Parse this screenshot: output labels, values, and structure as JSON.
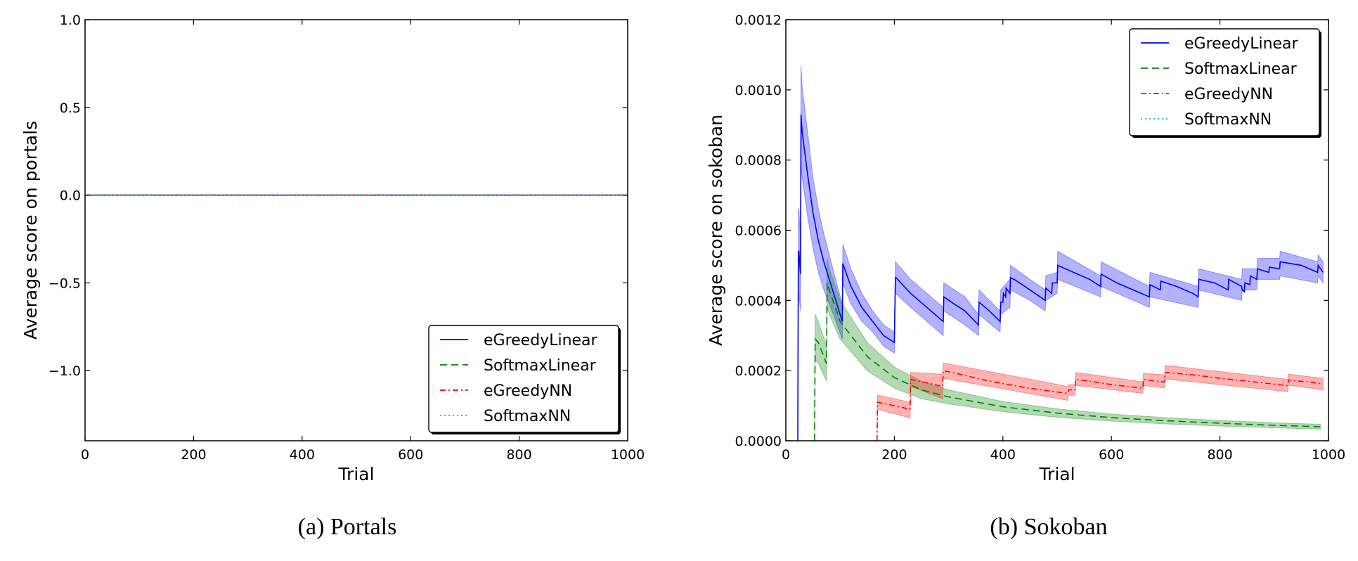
{
  "chart_data": [
    {
      "type": "line",
      "caption": "(a) Portals",
      "xlabel": "Trial",
      "ylabel": "Average score on portals",
      "xlim": [
        0,
        1000
      ],
      "ylim": [
        -1.4,
        1.0
      ],
      "xticks": [
        0,
        200,
        400,
        600,
        800,
        1000
      ],
      "xtick_labels": [
        "0",
        "200",
        "400",
        "600",
        "800",
        "1000"
      ],
      "yticks": [
        -1.0,
        -0.5,
        0.0,
        0.5,
        1.0
      ],
      "ytick_labels": [
        "−1.0",
        "−0.5",
        "0.0",
        "0.5",
        "1.0"
      ],
      "grid": false,
      "legend_position": "lower-right",
      "series": [
        {
          "name": "eGreedyLinear",
          "color": "#0000ff",
          "style": "solid",
          "x": [
            0,
            1000
          ],
          "y": [
            0,
            0
          ]
        },
        {
          "name": "SoftmaxLinear",
          "color": "#008000",
          "style": "dashed",
          "x": [
            0,
            1000
          ],
          "y": [
            0,
            0
          ]
        },
        {
          "name": "eGreedyNN",
          "color": "#ff0000",
          "style": "dashdot",
          "x": [
            0,
            1000
          ],
          "y": [
            0,
            0
          ]
        },
        {
          "name": "SoftmaxNN",
          "color": "#00bfbf",
          "style": "dotted",
          "x": [
            0,
            1000
          ],
          "y": [
            0,
            0
          ]
        }
      ]
    },
    {
      "type": "line",
      "caption": "(b) Sokoban",
      "xlabel": "Trial",
      "ylabel": "Average score on sokoban",
      "xlim": [
        0,
        1000
      ],
      "ylim": [
        0,
        0.0012
      ],
      "xticks": [
        0,
        200,
        400,
        600,
        800,
        1000
      ],
      "xtick_labels": [
        "0",
        "200",
        "400",
        "600",
        "800",
        "1000"
      ],
      "yticks": [
        0,
        0.0002,
        0.0004,
        0.0006,
        0.0008,
        0.001,
        0.0012
      ],
      "ytick_labels": [
        "0.0000",
        "0.0002",
        "0.0004",
        "0.0006",
        "0.0008",
        "0.0010",
        "0.0012"
      ],
      "grid": false,
      "legend_position": "upper-right",
      "series": [
        {
          "name": "eGreedyLinear",
          "color": "#0000ff",
          "style": "solid",
          "x": [
            22,
            23,
            24,
            27,
            28,
            30,
            40,
            50,
            60,
            70,
            80,
            90,
            104,
            105,
            120,
            140,
            160,
            180,
            200,
            202,
            203,
            230,
            260,
            290,
            291,
            310,
            330,
            355,
            356,
            375,
            395,
            396,
            400,
            401,
            405,
            406,
            413,
            414,
            420,
            421,
            450,
            478,
            479,
            490,
            491,
            500,
            501,
            530,
            560,
            580,
            581,
            610,
            640,
            670,
            671,
            690,
            691,
            720,
            750,
            760,
            761,
            790,
            815,
            816,
            840,
            841,
            845,
            846,
            855,
            856,
            868,
            869,
            890,
            891,
            910,
            911,
            950,
            980,
            981,
            990
          ],
          "y": [
            0,
            0.00054,
            0.00054,
            0.000475,
            0.00093,
            0.00088,
            0.00076,
            0.00065,
            0.00057,
            0.00051,
            0.00046,
            0.00041,
            0.00034,
            0.000505,
            0.00044,
            0.00038,
            0.00034,
            0.0003,
            0.00028,
            0.000465,
            0.000465,
            0.00042,
            0.00038,
            0.00034,
            0.00041,
            0.00039,
            0.00037,
            0.00033,
            0.000395,
            0.00037,
            0.00034,
            0.000395,
            0.000395,
            0.00042,
            0.00041,
            0.000435,
            0.00042,
            0.000465,
            0.00046,
            0.00046,
            0.00043,
            0.0004,
            0.000435,
            0.00042,
            0.00045,
            0.00045,
            0.0005,
            0.00048,
            0.00046,
            0.00044,
            0.000475,
            0.00045,
            0.00043,
            0.00041,
            0.000445,
            0.00043,
            0.000455,
            0.00044,
            0.00042,
            0.00041,
            0.00046,
            0.00045,
            0.00043,
            0.00046,
            0.00044,
            0.00043,
            0.000425,
            0.00045,
            0.000445,
            0.00047,
            0.00046,
            0.00049,
            0.00048,
            0.000495,
            0.00049,
            0.00051,
            0.0005,
            0.00048,
            0.0005,
            0.00048
          ]
        },
        {
          "name": "SoftmaxLinear",
          "color": "#008000",
          "style": "dashed",
          "x": [
            53,
            54,
            60,
            75,
            76,
            80,
            100,
            150,
            200,
            250,
            300,
            400,
            500,
            600,
            700,
            800,
            900,
            985
          ],
          "y": [
            0,
            0.00029,
            0.00028,
            0.00022,
            0.00045,
            0.00043,
            0.00034,
            0.00024,
            0.00018,
            0.000145,
            0.000125,
            9.7e-05,
            7.9e-05,
            6.6e-05,
            5.7e-05,
            5e-05,
            4.4e-05,
            4e-05
          ]
        },
        {
          "name": "eGreedyNN",
          "color": "#ff0000",
          "style": "dashdot",
          "x": [
            168,
            169,
            200,
            229,
            230,
            260,
            289,
            290,
            320,
            360,
            400,
            440,
            480,
            520,
            521,
            533,
            534,
            560,
            600,
            658,
            659,
            690,
            698,
            699,
            750,
            800,
            850,
            925,
            926,
            960,
            990
          ],
          "y": [
            0,
            0.00011,
            0.0001,
            9e-05,
            0.000175,
            0.000165,
            0.000155,
            0.0002,
            0.00019,
            0.000175,
            0.000163,
            0.000152,
            0.000143,
            0.000135,
            0.000145,
            0.000145,
            0.000175,
            0.00017,
            0.00016,
            0.00015,
            0.000175,
            0.000168,
            0.000168,
            0.000195,
            0.000188,
            0.000178,
            0.00017,
            0.000157,
            0.000173,
            0.000168,
            0.000162
          ]
        },
        {
          "name": "SoftmaxNN",
          "color": "#00bfbf",
          "style": "dotted",
          "x": [],
          "y": []
        }
      ],
      "bands": [
        {
          "series": "eGreedyLinear",
          "color": "#0000ff",
          "x": [
            22,
            23,
            24,
            27,
            28,
            30,
            40,
            50,
            60,
            70,
            80,
            90,
            104,
            105,
            120,
            140,
            160,
            180,
            200,
            202,
            230,
            260,
            290,
            291,
            330,
            355,
            356,
            395,
            396,
            413,
            414,
            450,
            478,
            479,
            500,
            501,
            580,
            581,
            670,
            671,
            760,
            761,
            840,
            841,
            868,
            869,
            910,
            911,
            980,
            981,
            990
          ],
          "lower": [
            0,
            0.00042,
            0.00042,
            0.00037,
            0.00079,
            0.00075,
            0.00064,
            0.00055,
            0.00048,
            0.00043,
            0.00039,
            0.00035,
            0.00029,
            0.00045,
            0.00039,
            0.00034,
            0.00031,
            0.00027,
            0.00025,
            0.00042,
            0.00038,
            0.00034,
            0.0003,
            0.00037,
            0.00033,
            0.0003,
            0.00036,
            0.00031,
            0.00036,
            0.00038,
            0.00043,
            0.0004,
            0.00037,
            0.0004,
            0.00042,
            0.00046,
            0.00041,
            0.00044,
            0.00038,
            0.00041,
            0.00038,
            0.00043,
            0.0004,
            0.00043,
            0.00043,
            0.00046,
            0.00046,
            0.00047,
            0.00045,
            0.00047,
            0.00045
          ],
          "upper": [
            0,
            0.00066,
            0.00066,
            0.00058,
            0.00107,
            0.00101,
            0.00088,
            0.00075,
            0.00066,
            0.00059,
            0.00053,
            0.00047,
            0.00039,
            0.00056,
            0.00049,
            0.00042,
            0.00037,
            0.00033,
            0.00031,
            0.00051,
            0.00046,
            0.00042,
            0.00038,
            0.00045,
            0.00041,
            0.00036,
            0.00043,
            0.00037,
            0.00043,
            0.00046,
            0.0005,
            0.00046,
            0.00043,
            0.00047,
            0.00048,
            0.00054,
            0.00047,
            0.00051,
            0.00044,
            0.00048,
            0.00044,
            0.00049,
            0.00046,
            0.00049,
            0.00049,
            0.00052,
            0.00052,
            0.00054,
            0.00051,
            0.00053,
            0.00051
          ]
        },
        {
          "series": "SoftmaxLinear",
          "color": "#008000",
          "x": [
            53,
            54,
            60,
            75,
            76,
            80,
            100,
            150,
            200,
            250,
            300,
            400,
            500,
            600,
            700,
            800,
            900,
            985
          ],
          "lower": [
            0,
            0.00023,
            0.00022,
            0.00017,
            0.00038,
            0.00036,
            0.00029,
            0.0002,
            0.00015,
            0.00012,
            0.000105,
            8.3e-05,
            6.7e-05,
            5.6e-05,
            4.8e-05,
            4.2e-05,
            3.7e-05,
            3.3e-05
          ],
          "upper": [
            0,
            0.00036,
            0.00034,
            0.00027,
            0.00052,
            0.00049,
            0.0004,
            0.00028,
            0.00021,
            0.00017,
            0.000145,
            0.000112,
            9.1e-05,
            7.6e-05,
            6.6e-05,
            5.8e-05,
            5.1e-05,
            4.7e-05
          ]
        },
        {
          "series": "eGreedyNN",
          "color": "#ff0000",
          "x": [
            168,
            169,
            229,
            230,
            289,
            290,
            520,
            521,
            533,
            534,
            658,
            659,
            698,
            699,
            925,
            926,
            990
          ],
          "lower": [
            0,
            9e-05,
            6.5e-05,
            0.000155,
            0.00012,
            0.000178,
            0.000115,
            0.00013,
            0.00013,
            0.000158,
            0.000135,
            0.000158,
            0.00015,
            0.000176,
            0.00014,
            0.000158,
            0.000145
          ],
          "upper": [
            0,
            0.00013,
            0.00011,
            0.000195,
            0.00019,
            0.000222,
            0.000155,
            0.00016,
            0.00016,
            0.000195,
            0.000168,
            0.000192,
            0.000188,
            0.000215,
            0.000175,
            0.00019,
            0.000178
          ]
        }
      ]
    }
  ]
}
